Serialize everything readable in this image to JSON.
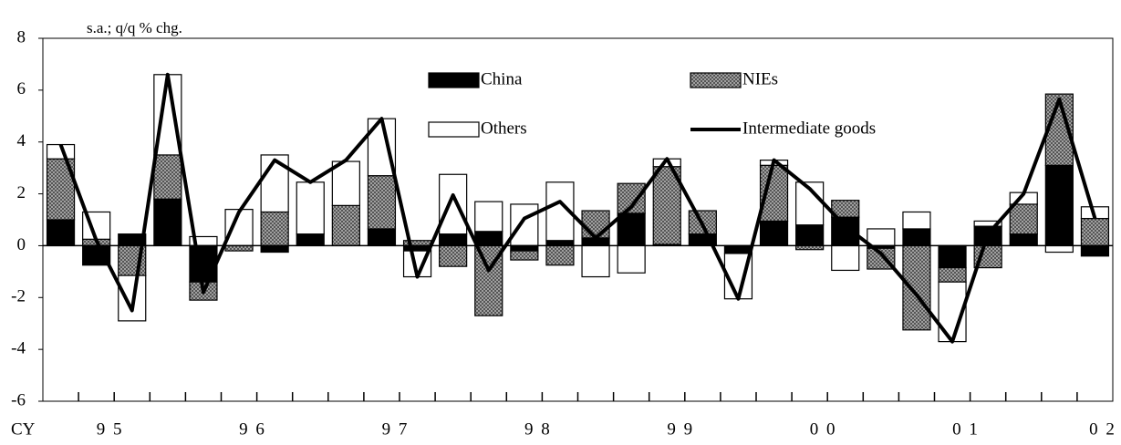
{
  "chart_data": {
    "type": "bar",
    "stacked": true,
    "y_unit_label": "s.a.; q/q % chg.",
    "x_label": "CY",
    "categories": [
      null,
      "9 5",
      null,
      null,
      null,
      "9 6",
      null,
      null,
      null,
      "9 7",
      null,
      null,
      null,
      "9 8",
      null,
      null,
      null,
      "9 9",
      null,
      null,
      null,
      "0 0",
      null,
      null,
      null,
      "0 1",
      null,
      null,
      null,
      "0 2"
    ],
    "series": [
      {
        "name": "China",
        "type": "bar",
        "color": "#000000",
        "values": [
          1.0,
          -0.75,
          0.45,
          1.8,
          -1.4,
          0,
          -0.25,
          0.45,
          0,
          0.65,
          -0.2,
          0.45,
          0.55,
          -0.2,
          0.2,
          0.3,
          1.25,
          0.05,
          0.45,
          -0.3,
          0.95,
          0.8,
          1.1,
          -0.1,
          0.65,
          -0.85,
          0.75,
          0.45,
          3.1,
          -0.4
        ]
      },
      {
        "name": "NIEs",
        "type": "bar",
        "color": "#a0a0a0",
        "values": [
          2.35,
          0.25,
          -1.15,
          1.7,
          -0.7,
          -0.2,
          1.3,
          0,
          1.55,
          2.05,
          0.2,
          -0.8,
          -2.7,
          -0.35,
          -0.75,
          1.05,
          1.15,
          3.0,
          0.9,
          0,
          2.15,
          -0.15,
          0.65,
          -0.8,
          -3.25,
          -0.55,
          -0.85,
          1.15,
          2.75,
          1.05
        ]
      },
      {
        "name": "Others",
        "type": "bar",
        "color": "#ffffff",
        "values": [
          0.55,
          1.05,
          -1.75,
          3.1,
          0.35,
          1.4,
          2.2,
          2.0,
          1.7,
          2.2,
          -1.0,
          2.3,
          1.15,
          1.6,
          2.25,
          -1.2,
          -1.05,
          0.3,
          0,
          -1.75,
          0.2,
          1.65,
          -0.95,
          0.65,
          0.65,
          -2.3,
          0.2,
          0.45,
          -0.25,
          0.45
        ]
      },
      {
        "name": "Intermediate goods",
        "type": "line",
        "color": "#000000",
        "values": [
          3.9,
          0.2,
          -2.5,
          6.6,
          -1.8,
          1.3,
          3.3,
          2.45,
          3.3,
          4.9,
          -1.2,
          1.95,
          -0.95,
          1.05,
          1.7,
          0.3,
          1.5,
          3.35,
          0.8,
          -2.05,
          3.3,
          2.2,
          0.75,
          -0.3,
          -1.9,
          -3.7,
          0.45,
          2.0,
          5.65,
          1.05
        ]
      }
    ],
    "ylim": [
      -6,
      8
    ],
    "yticks": [
      -6,
      -4,
      -2,
      0,
      2,
      4,
      6,
      8
    ],
    "grid": false,
    "legend": "top"
  }
}
